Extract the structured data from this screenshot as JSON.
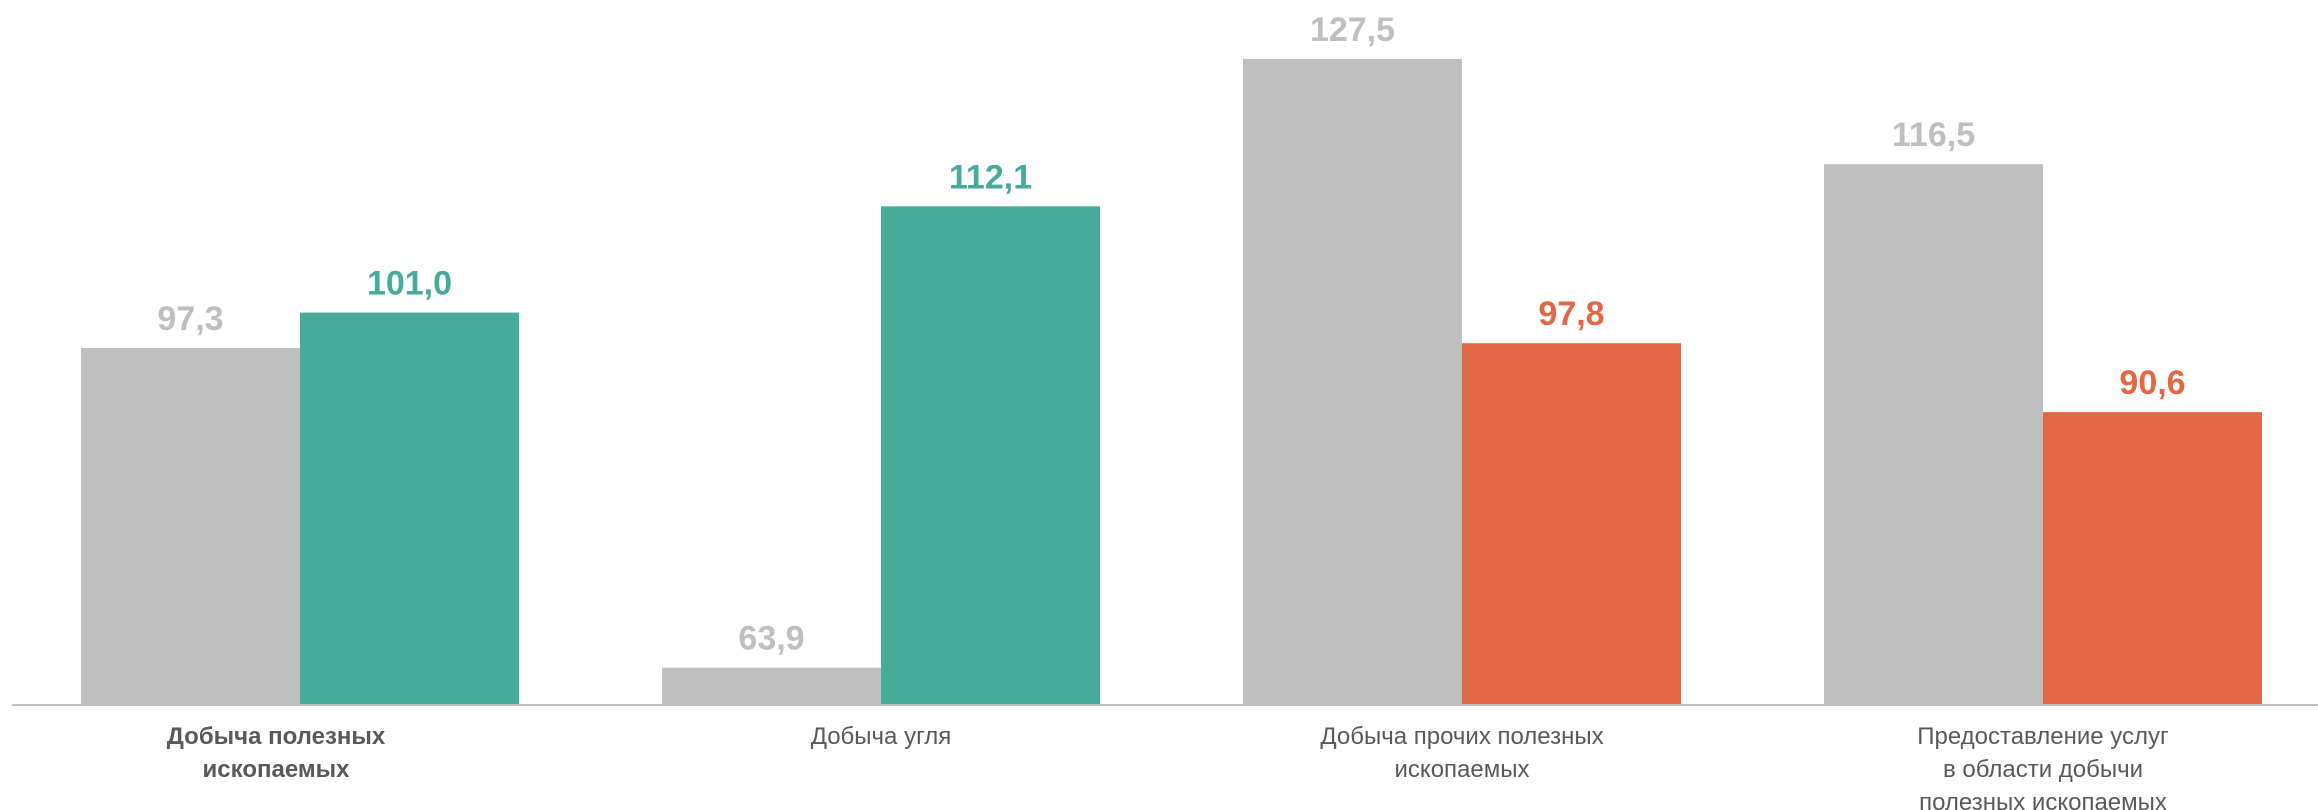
{
  "chart_data": {
    "type": "bar",
    "categories": [
      "Добыча полезных\nископаемых",
      "Добыча угля",
      "Добыча прочих полезных\nископаемых",
      "Предоставление услуг\nв области добычи\nполезных ископаемых"
    ],
    "series": [
      {
        "color": "#bfbfbf",
        "values": [
          97.3,
          63.9,
          127.5,
          116.5
        ],
        "value_labels": [
          "97,3",
          "63,9",
          "127,5",
          "116,5"
        ]
      },
      {
        "colors": [
          "#46ab99",
          "#46ab99",
          "#e26745",
          "#e26745"
        ],
        "values": [
          101.0,
          112.1,
          97.8,
          90.6
        ],
        "value_labels": [
          "101,0",
          "112,1",
          "97,8",
          "90,6"
        ]
      }
    ],
    "ylim": [
      60,
      130
    ]
  }
}
